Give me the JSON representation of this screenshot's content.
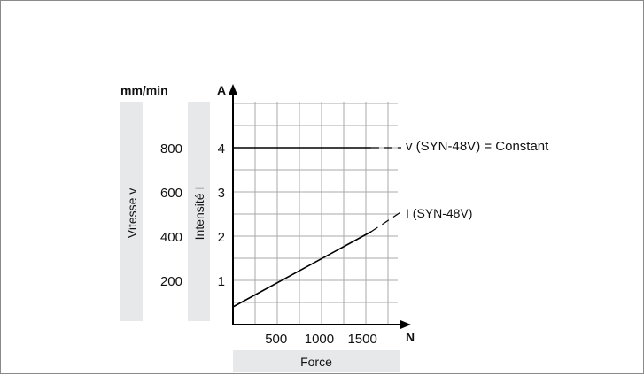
{
  "chart_data": {
    "type": "line",
    "x": {
      "unit": "N",
      "title": "Force",
      "range": [
        0,
        1950
      ],
      "tick_values": [
        500,
        1000,
        1500
      ],
      "tick_labels": [
        "500",
        "1000",
        "1500"
      ]
    },
    "y_left": {
      "unit": "mm/min",
      "title": "Vitesse v",
      "tick_values": [
        200,
        400,
        600,
        800
      ],
      "tick_labels": [
        "200",
        "400",
        "600",
        "800"
      ]
    },
    "y_right": {
      "unit": "A",
      "title": "Intensité I",
      "range": [
        0,
        5
      ],
      "tick_values": [
        1,
        2,
        3,
        4
      ],
      "tick_labels": [
        "1",
        "2",
        "3",
        "4"
      ]
    },
    "grid": true,
    "series": [
      {
        "name": "v (SYN-48V) = Constant",
        "axis": "y_right",
        "color": "#000000",
        "x": [
          0,
          1600,
          1950
        ],
        "y": [
          4,
          4,
          4
        ],
        "dashed_from_x": 1600
      },
      {
        "name": "I (SYN-48V)",
        "axis": "y_right",
        "color": "#000000",
        "x": [
          0,
          1600,
          1950
        ],
        "y": [
          0.4,
          2.1,
          2.55
        ],
        "dashed_from_x": 1600
      }
    ]
  },
  "colors": {
    "axis_panel": "#e6e8e9",
    "grid": "#a9a9a9",
    "line": "#000000"
  }
}
